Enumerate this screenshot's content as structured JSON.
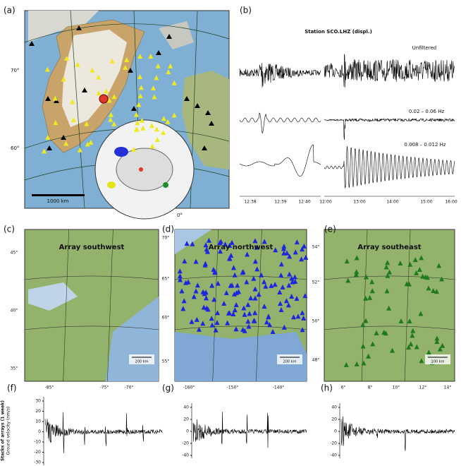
{
  "panels": {
    "a": {
      "label": "(a)",
      "lat_labels": [
        "70°",
        "60°"
      ],
      "lon_label": "0°",
      "scale": "1000 km"
    },
    "b": {
      "label": "(b)",
      "title": "Station SCO.LHZ (displ.)",
      "traces": [
        "Unfiltered",
        "0.02 – 0.06 Hz",
        "0.008 – 0.012 Hz"
      ],
      "xticks_left": [
        "12:38",
        "12:39",
        "12:40"
      ],
      "xticks_right": [
        "12:00",
        "13:00",
        "14:00",
        "15:00",
        "16:00"
      ]
    },
    "c": {
      "label": "(c)",
      "title": "Array southwest",
      "lat_labels": [
        "45°",
        "40°",
        "35°"
      ],
      "lon_labels": [
        "-85°",
        "-75°",
        "-70°"
      ],
      "scale": "200 km"
    },
    "d": {
      "label": "(d)",
      "title": "Array northwest",
      "lat_labels": [
        "70°",
        "65°",
        "60°",
        "55°"
      ],
      "lon_labels": [
        "-160°",
        "-150°",
        "-140°"
      ],
      "scale": "200 km"
    },
    "e": {
      "label": "(e)",
      "title": "Array southeast",
      "lat_labels": [
        "54°",
        "52°",
        "50°",
        "48°"
      ],
      "lon_labels": [
        "6°",
        "8°",
        "10°",
        "12°",
        "14°"
      ],
      "scale": "100 km"
    },
    "f": {
      "label": "(f)",
      "yticks": [
        "30",
        "20",
        "10",
        "0",
        "-10",
        "-20",
        "-30"
      ]
    },
    "g": {
      "label": "(g)",
      "yticks": [
        "40",
        "20",
        "0",
        "-20",
        "-40"
      ]
    },
    "h": {
      "label": "(h)",
      "yticks": [
        "40",
        "20",
        "0",
        "-20",
        "-40"
      ]
    }
  },
  "y_axis_title": [
    "Stacks of arrays (1 week)",
    "Ground velocity (nm/s)"
  ]
}
